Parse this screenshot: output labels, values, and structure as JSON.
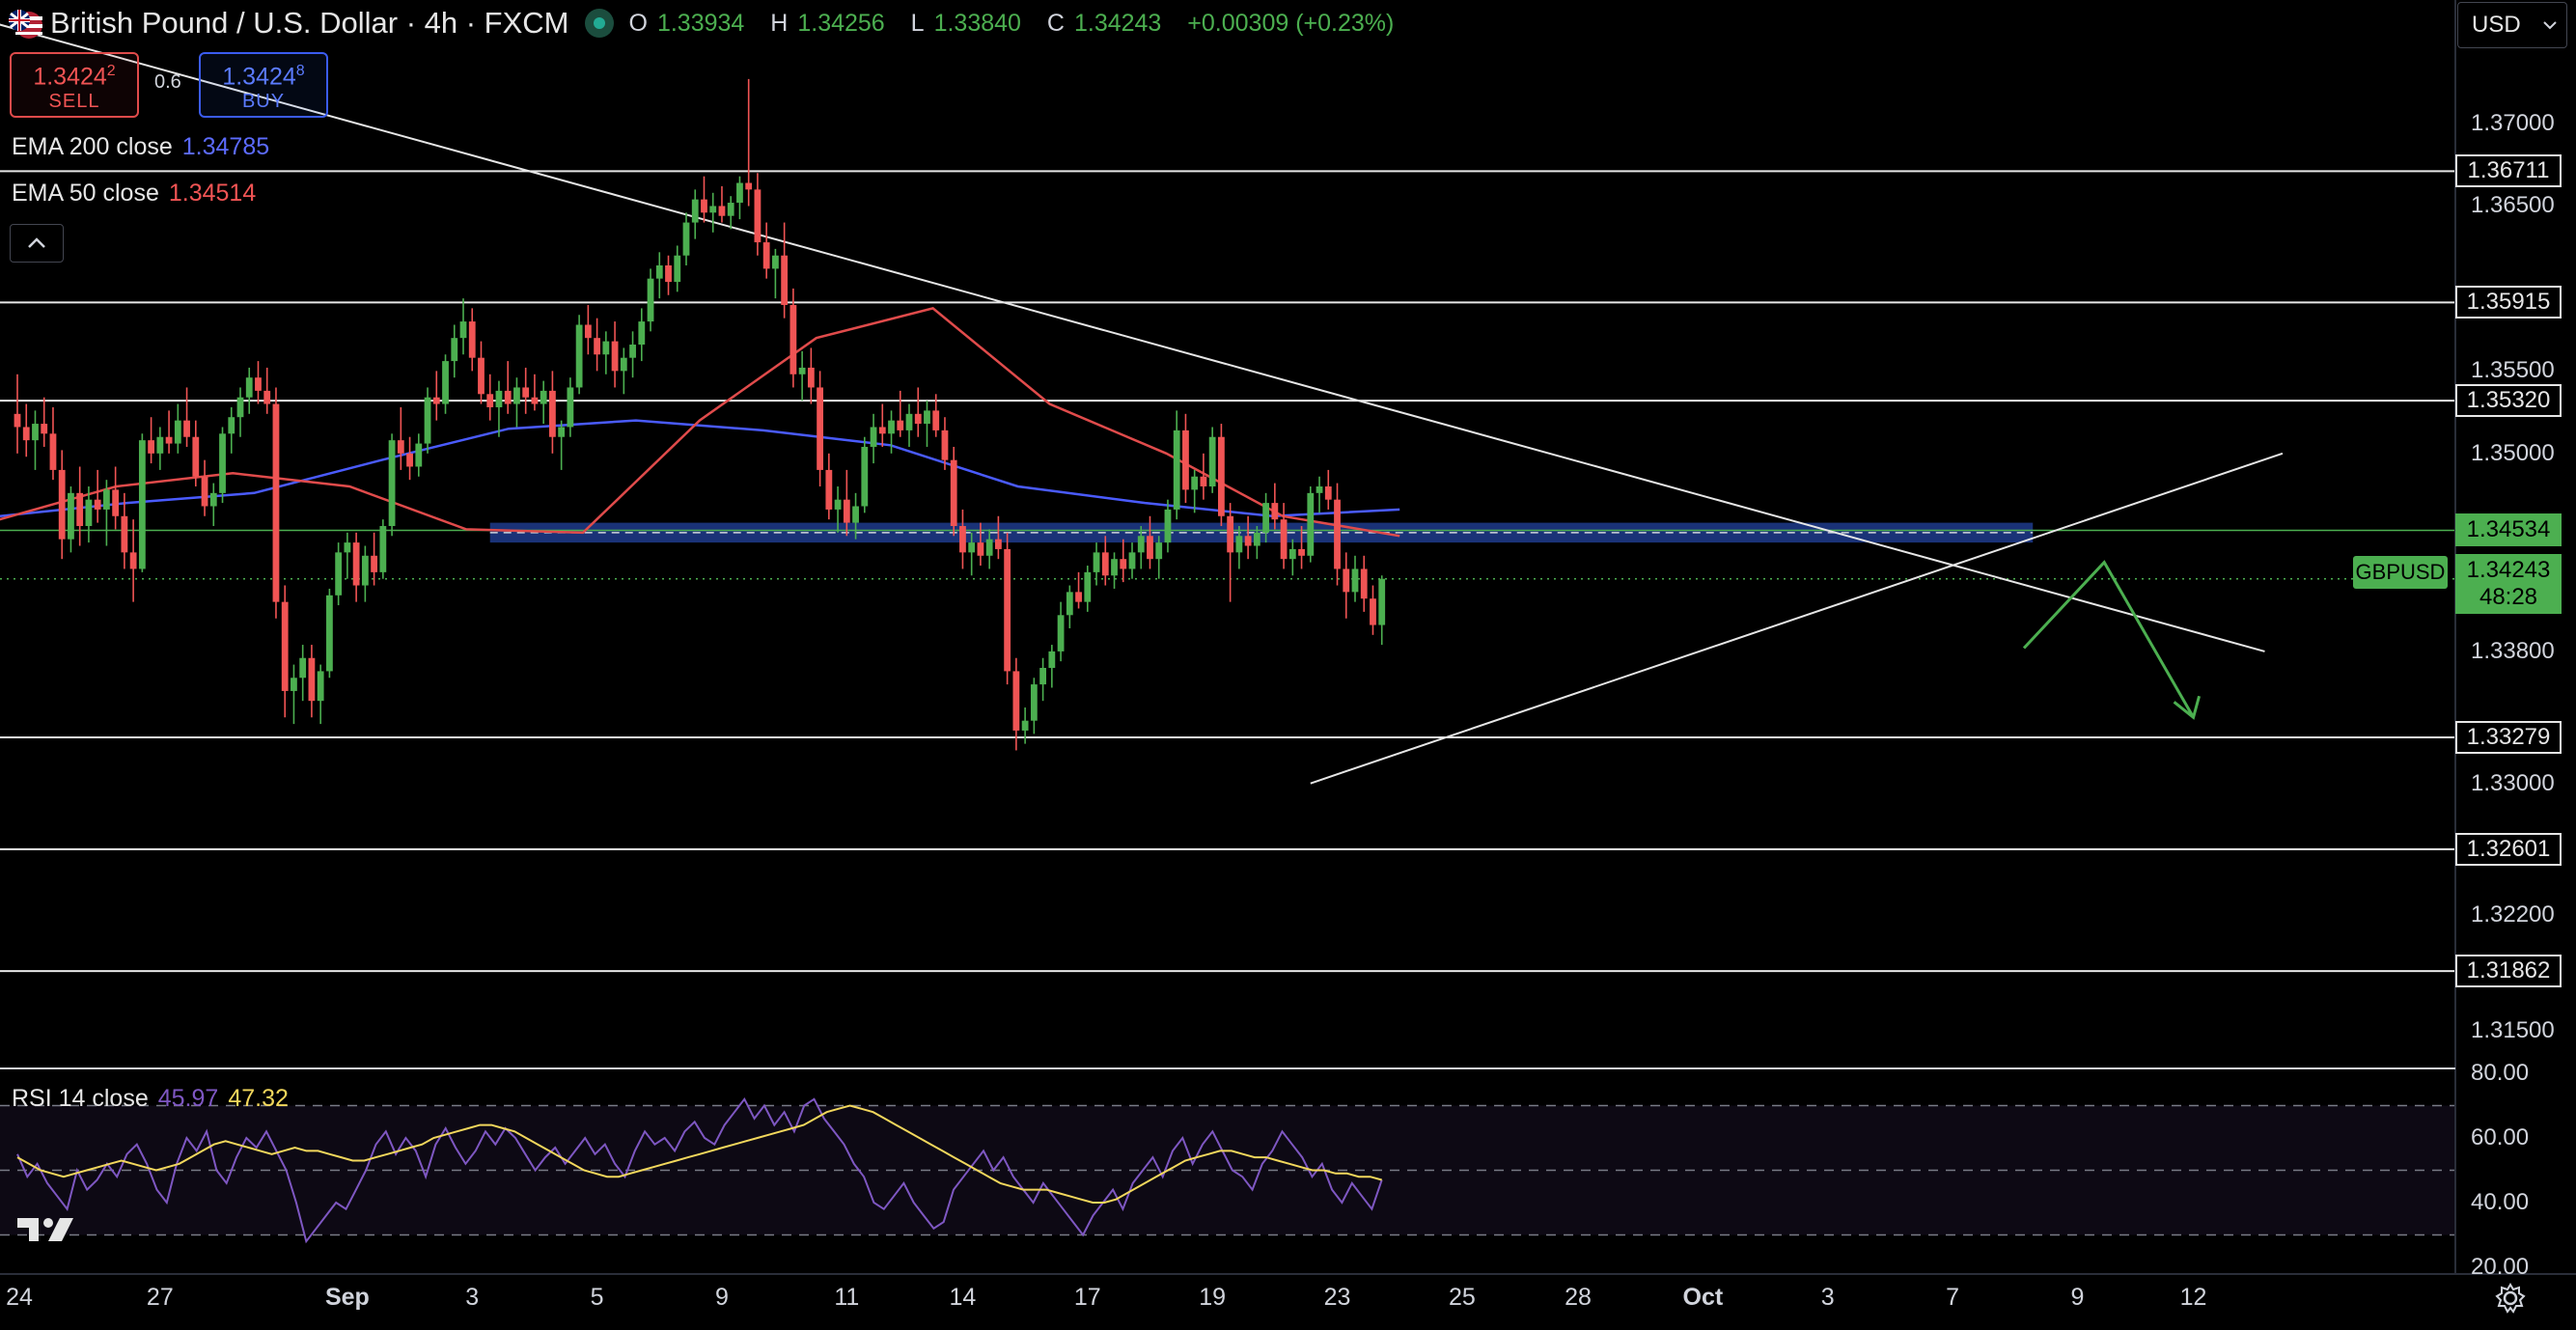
{
  "header": {
    "title": "British Pound / U.S. Dollar · 4h · FXCM",
    "ohlc": {
      "o_label": "O",
      "o": "1.33934",
      "h_label": "H",
      "h": "1.34256",
      "l_label": "L",
      "l": "1.33840",
      "c_label": "C",
      "c": "1.34243",
      "change": "+0.00309 (+0.23%)"
    }
  },
  "trade": {
    "sell_price_main": "1.3424",
    "sell_price_sup": "2",
    "sell_label": "SELL",
    "spread": "0.6",
    "buy_price_main": "1.3424",
    "buy_price_sup": "8",
    "buy_label": "BUY"
  },
  "indicators": {
    "ema200": {
      "label": "EMA 200 close",
      "value": "1.34785",
      "color": "#5c6bff"
    },
    "ema50": {
      "label": "EMA 50 close",
      "value": "1.34514",
      "color": "#f05454"
    },
    "collapse_icon": "chevron-up-icon"
  },
  "currency": {
    "value": "USD"
  },
  "symbol": {
    "name": "GBPUSD",
    "price": "1.34243",
    "countdown": "48:28"
  },
  "y_axis": {
    "ticks": [
      {
        "label": "1.37000",
        "price": 1.37
      },
      {
        "label": "1.36500",
        "price": 1.365
      },
      {
        "label": "1.35500",
        "price": 1.355
      },
      {
        "label": "1.35000",
        "price": 1.35
      },
      {
        "label": "1.33800",
        "price": 1.338
      },
      {
        "label": "1.33000",
        "price": 1.33
      },
      {
        "label": "1.32200",
        "price": 1.322
      },
      {
        "label": "1.31500",
        "price": 1.315
      }
    ],
    "levels": [
      {
        "label": "1.36711",
        "price": 1.36711
      },
      {
        "label": "1.35915",
        "price": 1.35915
      },
      {
        "label": "1.35320",
        "price": 1.3532
      },
      {
        "label": "1.33279",
        "price": 1.33279
      },
      {
        "label": "1.32601",
        "price": 1.32601
      },
      {
        "label": "1.31862",
        "price": 1.31862
      }
    ],
    "green_level": {
      "label": "1.34534",
      "price": 1.34534
    }
  },
  "x_axis": {
    "labels": [
      {
        "label": "24",
        "index": 0
      },
      {
        "label": "27",
        "index": 16
      },
      {
        "label": "Sep",
        "index": 37
      },
      {
        "label": "3",
        "index": 51
      },
      {
        "label": "5",
        "index": 65
      },
      {
        "label": "9",
        "index": 79
      },
      {
        "label": "11",
        "index": 93
      },
      {
        "label": "14",
        "index": 106
      },
      {
        "label": "17",
        "index": 120
      },
      {
        "label": "19",
        "index": 134
      },
      {
        "label": "23",
        "index": 148
      },
      {
        "label": "25",
        "index": 162
      },
      {
        "label": "28",
        "index": 175
      },
      {
        "label": "Oct",
        "index": 189
      },
      {
        "label": "3",
        "index": 203
      },
      {
        "label": "7",
        "index": 217
      },
      {
        "label": "9",
        "index": 231
      },
      {
        "label": "12",
        "index": 244
      }
    ]
  },
  "rsi": {
    "label": "RSI 14 close",
    "value": "45.97",
    "ma_value": "47.32",
    "ticks": [
      {
        "label": "80.00",
        "v": 80
      },
      {
        "label": "60.00",
        "v": 60
      },
      {
        "label": "40.00",
        "v": 40
      },
      {
        "label": "20.00",
        "v": 20
      }
    ],
    "bands": {
      "upper": 70,
      "middle": 50,
      "lower": 30
    },
    "color": "#7e57c2",
    "ma_color": "#f2d75c"
  },
  "colors": {
    "up": "#4caf50",
    "down": "#f05454",
    "ema200": "#4a5bff",
    "ema50": "#e04b4b",
    "zone": "#1f3b8c",
    "level": "#e6e6e6",
    "arrow": "#4caf50"
  },
  "chart_data": {
    "type": "candlestick",
    "candles": [
      [
        1.3524,
        1.3548,
        1.35,
        1.3516
      ],
      [
        1.3516,
        1.353,
        1.3498,
        1.3508
      ],
      [
        1.3508,
        1.3526,
        1.349,
        1.3518
      ],
      [
        1.3518,
        1.3534,
        1.3504,
        1.3512
      ],
      [
        1.3512,
        1.3528,
        1.3484,
        1.349
      ],
      [
        1.349,
        1.3502,
        1.3436,
        1.3448
      ],
      [
        1.3448,
        1.348,
        1.344,
        1.3476
      ],
      [
        1.3476,
        1.3492,
        1.3444,
        1.3456
      ],
      [
        1.3456,
        1.348,
        1.3446,
        1.3472
      ],
      [
        1.3472,
        1.349,
        1.3458,
        1.3466
      ],
      [
        1.3466,
        1.3484,
        1.3444,
        1.3478
      ],
      [
        1.3478,
        1.3492,
        1.3454,
        1.3462
      ],
      [
        1.3462,
        1.3476,
        1.343,
        1.344
      ],
      [
        1.344,
        1.346,
        1.341,
        1.343
      ],
      [
        1.343,
        1.3512,
        1.3428,
        1.3508
      ],
      [
        1.3508,
        1.3522,
        1.3494,
        1.35
      ],
      [
        1.35,
        1.3516,
        1.349,
        1.351
      ],
      [
        1.351,
        1.3526,
        1.35,
        1.3506
      ],
      [
        1.3506,
        1.353,
        1.35,
        1.352
      ],
      [
        1.352,
        1.354,
        1.3504,
        1.351
      ],
      [
        1.351,
        1.352,
        1.348,
        1.3486
      ],
      [
        1.3486,
        1.3496,
        1.3462,
        1.3468
      ],
      [
        1.3468,
        1.3482,
        1.3456,
        1.3476
      ],
      [
        1.3476,
        1.3516,
        1.347,
        1.3512
      ],
      [
        1.3512,
        1.3528,
        1.35,
        1.3522
      ],
      [
        1.3522,
        1.354,
        1.351,
        1.3534
      ],
      [
        1.3534,
        1.3552,
        1.3524,
        1.3546
      ],
      [
        1.3546,
        1.3556,
        1.353,
        1.3538
      ],
      [
        1.3538,
        1.3552,
        1.3524,
        1.353
      ],
      [
        1.353,
        1.354,
        1.34,
        1.341
      ],
      [
        1.341,
        1.342,
        1.334,
        1.3356
      ],
      [
        1.3356,
        1.3372,
        1.3336,
        1.3364
      ],
      [
        1.3364,
        1.3384,
        1.335,
        1.3376
      ],
      [
        1.3376,
        1.3384,
        1.334,
        1.335
      ],
      [
        1.335,
        1.3372,
        1.3336,
        1.3368
      ],
      [
        1.3368,
        1.3418,
        1.3364,
        1.3414
      ],
      [
        1.3414,
        1.3446,
        1.3408,
        1.344
      ],
      [
        1.344,
        1.3452,
        1.3424,
        1.3446
      ],
      [
        1.3446,
        1.3452,
        1.341,
        1.342
      ],
      [
        1.342,
        1.3444,
        1.341,
        1.3438
      ],
      [
        1.3438,
        1.3452,
        1.342,
        1.3428
      ],
      [
        1.3428,
        1.346,
        1.3424,
        1.3456
      ],
      [
        1.3456,
        1.3512,
        1.345,
        1.3508
      ],
      [
        1.3508,
        1.3528,
        1.349,
        1.35
      ],
      [
        1.35,
        1.351,
        1.3484,
        1.3492
      ],
      [
        1.3492,
        1.3512,
        1.3486,
        1.3506
      ],
      [
        1.3506,
        1.354,
        1.35,
        1.3534
      ],
      [
        1.3534,
        1.355,
        1.352,
        1.353
      ],
      [
        1.353,
        1.356,
        1.3524,
        1.3556
      ],
      [
        1.3556,
        1.3578,
        1.3546,
        1.357
      ],
      [
        1.357,
        1.3594,
        1.356,
        1.358
      ],
      [
        1.358,
        1.3588,
        1.355,
        1.3558
      ],
      [
        1.3558,
        1.3568,
        1.353,
        1.3536
      ],
      [
        1.3536,
        1.3548,
        1.352,
        1.3528
      ],
      [
        1.3528,
        1.3544,
        1.351,
        1.3538
      ],
      [
        1.3538,
        1.3556,
        1.3524,
        1.353
      ],
      [
        1.353,
        1.3546,
        1.3516,
        1.354
      ],
      [
        1.354,
        1.3552,
        1.3524,
        1.3534
      ],
      [
        1.3534,
        1.3548,
        1.3526,
        1.353
      ],
      [
        1.353,
        1.3544,
        1.3518,
        1.3538
      ],
      [
        1.3538,
        1.355,
        1.35,
        1.351
      ],
      [
        1.351,
        1.352,
        1.349,
        1.3516
      ],
      [
        1.3516,
        1.3546,
        1.351,
        1.354
      ],
      [
        1.354,
        1.3584,
        1.3536,
        1.3578
      ],
      [
        1.3578,
        1.359,
        1.356,
        1.357
      ],
      [
        1.357,
        1.3582,
        1.355,
        1.356
      ],
      [
        1.356,
        1.3574,
        1.3548,
        1.3568
      ],
      [
        1.3568,
        1.358,
        1.354,
        1.355
      ],
      [
        1.355,
        1.3564,
        1.3536,
        1.3558
      ],
      [
        1.3558,
        1.3574,
        1.3546,
        1.3566
      ],
      [
        1.3566,
        1.3588,
        1.3556,
        1.358
      ],
      [
        1.358,
        1.3612,
        1.3574,
        1.3606
      ],
      [
        1.3606,
        1.3622,
        1.3594,
        1.3614
      ],
      [
        1.3614,
        1.362,
        1.3596,
        1.3604
      ],
      [
        1.3604,
        1.3626,
        1.3598,
        1.362
      ],
      [
        1.362,
        1.3646,
        1.3614,
        1.364
      ],
      [
        1.364,
        1.366,
        1.363,
        1.3654
      ],
      [
        1.3654,
        1.3668,
        1.364,
        1.3646
      ],
      [
        1.3646,
        1.3658,
        1.3634,
        1.365
      ],
      [
        1.365,
        1.3662,
        1.364,
        1.3644
      ],
      [
        1.3644,
        1.3656,
        1.3636,
        1.3652
      ],
      [
        1.3652,
        1.3668,
        1.3642,
        1.3664
      ],
      [
        1.3664,
        1.3727,
        1.365,
        1.366
      ],
      [
        1.366,
        1.367,
        1.362,
        1.3628
      ],
      [
        1.3628,
        1.364,
        1.3606,
        1.3612
      ],
      [
        1.3612,
        1.3624,
        1.3594,
        1.362
      ],
      [
        1.362,
        1.364,
        1.3582,
        1.359
      ],
      [
        1.359,
        1.36,
        1.354,
        1.3548
      ],
      [
        1.3548,
        1.3562,
        1.3532,
        1.3552
      ],
      [
        1.3552,
        1.3564,
        1.353,
        1.354
      ],
      [
        1.354,
        1.355,
        1.348,
        1.349
      ],
      [
        1.349,
        1.35,
        1.346,
        1.3466
      ],
      [
        1.3466,
        1.348,
        1.3452,
        1.3472
      ],
      [
        1.3472,
        1.349,
        1.345,
        1.3458
      ],
      [
        1.3458,
        1.3476,
        1.3448,
        1.3468
      ],
      [
        1.3468,
        1.351,
        1.3464,
        1.3504
      ],
      [
        1.3504,
        1.3524,
        1.3494,
        1.3516
      ],
      [
        1.3516,
        1.353,
        1.3504,
        1.3512
      ],
      [
        1.3512,
        1.3526,
        1.35,
        1.352
      ],
      [
        1.352,
        1.3538,
        1.351,
        1.3514
      ],
      [
        1.3514,
        1.353,
        1.3504,
        1.3524
      ],
      [
        1.3524,
        1.354,
        1.351,
        1.3518
      ],
      [
        1.3518,
        1.3532,
        1.3504,
        1.3526
      ],
      [
        1.3526,
        1.3536,
        1.351,
        1.3514
      ],
      [
        1.3514,
        1.3522,
        1.349,
        1.3496
      ],
      [
        1.3496,
        1.3504,
        1.345,
        1.3456
      ],
      [
        1.3456,
        1.3466,
        1.343,
        1.344
      ],
      [
        1.344,
        1.3452,
        1.3426,
        1.3446
      ],
      [
        1.3446,
        1.3458,
        1.3432,
        1.3438
      ],
      [
        1.3438,
        1.3454,
        1.343,
        1.3448
      ],
      [
        1.3448,
        1.3462,
        1.3436,
        1.3442
      ],
      [
        1.3442,
        1.3452,
        1.336,
        1.3368
      ],
      [
        1.3368,
        1.3376,
        1.332,
        1.3332
      ],
      [
        1.3332,
        1.3346,
        1.3324,
        1.3338
      ],
      [
        1.3338,
        1.3364,
        1.333,
        1.336
      ],
      [
        1.336,
        1.3376,
        1.335,
        1.337
      ],
      [
        1.337,
        1.3384,
        1.3358,
        1.338
      ],
      [
        1.338,
        1.341,
        1.3374,
        1.3402
      ],
      [
        1.3402,
        1.342,
        1.3394,
        1.3416
      ],
      [
        1.3416,
        1.3428,
        1.3406,
        1.341
      ],
      [
        1.341,
        1.3432,
        1.3404,
        1.3428
      ],
      [
        1.3428,
        1.3446,
        1.342,
        1.344
      ],
      [
        1.344,
        1.345,
        1.342,
        1.3426
      ],
      [
        1.3426,
        1.344,
        1.3418,
        1.3436
      ],
      [
        1.3436,
        1.3448,
        1.3422,
        1.343
      ],
      [
        1.343,
        1.3446,
        1.3424,
        1.344
      ],
      [
        1.344,
        1.3456,
        1.343,
        1.345
      ],
      [
        1.345,
        1.3462,
        1.343,
        1.3436
      ],
      [
        1.3436,
        1.345,
        1.3424,
        1.3446
      ],
      [
        1.3446,
        1.3472,
        1.344,
        1.3466
      ],
      [
        1.3466,
        1.3526,
        1.346,
        1.3514
      ],
      [
        1.3514,
        1.3524,
        1.347,
        1.3478
      ],
      [
        1.3478,
        1.349,
        1.3464,
        1.3486
      ],
      [
        1.3486,
        1.35,
        1.3472,
        1.348
      ],
      [
        1.348,
        1.3516,
        1.3476,
        1.351
      ],
      [
        1.351,
        1.3518,
        1.3456,
        1.3462
      ],
      [
        1.3462,
        1.347,
        1.341,
        1.344
      ],
      [
        1.344,
        1.3456,
        1.343,
        1.345
      ],
      [
        1.345,
        1.3462,
        1.3436,
        1.3444
      ],
      [
        1.3444,
        1.3456,
        1.3436,
        1.3452
      ],
      [
        1.3452,
        1.3476,
        1.3446,
        1.347
      ],
      [
        1.347,
        1.3482,
        1.3454,
        1.346
      ],
      [
        1.346,
        1.347,
        1.343,
        1.3436
      ],
      [
        1.3436,
        1.3448,
        1.3426,
        1.3442
      ],
      [
        1.3442,
        1.3456,
        1.343,
        1.3438
      ],
      [
        1.3438,
        1.348,
        1.3434,
        1.3476
      ],
      [
        1.3476,
        1.3486,
        1.3464,
        1.348
      ],
      [
        1.348,
        1.349,
        1.3466,
        1.3472
      ],
      [
        1.3472,
        1.3482,
        1.342,
        1.343
      ],
      [
        1.343,
        1.344,
        1.34,
        1.3416
      ],
      [
        1.3416,
        1.3438,
        1.341,
        1.343
      ],
      [
        1.343,
        1.3438,
        1.3404,
        1.3412
      ],
      [
        1.3412,
        1.342,
        1.339,
        1.3396
      ],
      [
        1.3396,
        1.3426,
        1.3384,
        1.3424
      ]
    ],
    "ema200": [
      1.3462,
      1.347,
      1.3476,
      1.3496,
      1.3515,
      1.352,
      1.3514,
      1.3505,
      1.348,
      1.347,
      1.3462,
      1.3466
    ],
    "ema50": [
      1.346,
      1.348,
      1.3488,
      1.348,
      1.3454,
      1.3452,
      1.352,
      1.357,
      1.3588,
      1.353,
      1.35,
      1.3462,
      1.345
    ],
    "zone": {
      "from_index": 53,
      "to_index": 226,
      "top": 1.3458,
      "bottom": 1.3446
    },
    "rsi_values": [
      55,
      48,
      52,
      46,
      42,
      38,
      50,
      44,
      47,
      52,
      48,
      55,
      58,
      52,
      44,
      40,
      52,
      60,
      56,
      62,
      50,
      46,
      54,
      60,
      57,
      62,
      56,
      50,
      40,
      28,
      32,
      36,
      40,
      38,
      44,
      50,
      58,
      62,
      55,
      60,
      56,
      48,
      58,
      63,
      57,
      52,
      56,
      62,
      58,
      63,
      60,
      55,
      50,
      54,
      57,
      52,
      56,
      60,
      55,
      58,
      52,
      48,
      56,
      62,
      58,
      60,
      56,
      62,
      65,
      60,
      58,
      64,
      68,
      72,
      66,
      70,
      64,
      68,
      62,
      70,
      72,
      66,
      62,
      58,
      52,
      48,
      40,
      38,
      42,
      46,
      40,
      36,
      32,
      34,
      44,
      48,
      52,
      56,
      50,
      54,
      48,
      44,
      40,
      46,
      42,
      38,
      34,
      30,
      36,
      40,
      44,
      38,
      46,
      50,
      54,
      48,
      56,
      60,
      52,
      58,
      62,
      56,
      50,
      48,
      44,
      52,
      56,
      62,
      58,
      54,
      48,
      52,
      44,
      40,
      46,
      42,
      38,
      47
    ],
    "rsi_ma": [
      54,
      52,
      50,
      49,
      48,
      49,
      50,
      51,
      52,
      53,
      52,
      51,
      50,
      51,
      52,
      54,
      56,
      58,
      59,
      58,
      57,
      56,
      55,
      56,
      57,
      56,
      56,
      55,
      54,
      53,
      53,
      54,
      55,
      56,
      57,
      58,
      60,
      61,
      62,
      63,
      64,
      64,
      63,
      62,
      60,
      58,
      56,
      54,
      52,
      50,
      49,
      48,
      48,
      49,
      50,
      51,
      52,
      53,
      54,
      55,
      56,
      57,
      58,
      59,
      60,
      61,
      62,
      63,
      64,
      66,
      68,
      69,
      70,
      69,
      68,
      66,
      64,
      62,
      60,
      58,
      56,
      54,
      52,
      50,
      48,
      46,
      45,
      44,
      44,
      44,
      43,
      42,
      41,
      40,
      40,
      41,
      43,
      45,
      47,
      49,
      51,
      53,
      54,
      55,
      56,
      56,
      55,
      54,
      54,
      53,
      52,
      51,
      50,
      50,
      49,
      49,
      48,
      48,
      47
    ],
    "resistance_trendline": [
      [
        1.376,
        -2
      ],
      [
        1.338,
        252
      ]
    ],
    "support_trendline": [
      [
        1.33,
        145
      ],
      [
        1.35,
        254
      ]
    ],
    "forecast_arrow": [
      [
        1.3382,
        225
      ],
      [
        1.3434,
        234
      ],
      [
        1.334,
        244
      ]
    ]
  }
}
